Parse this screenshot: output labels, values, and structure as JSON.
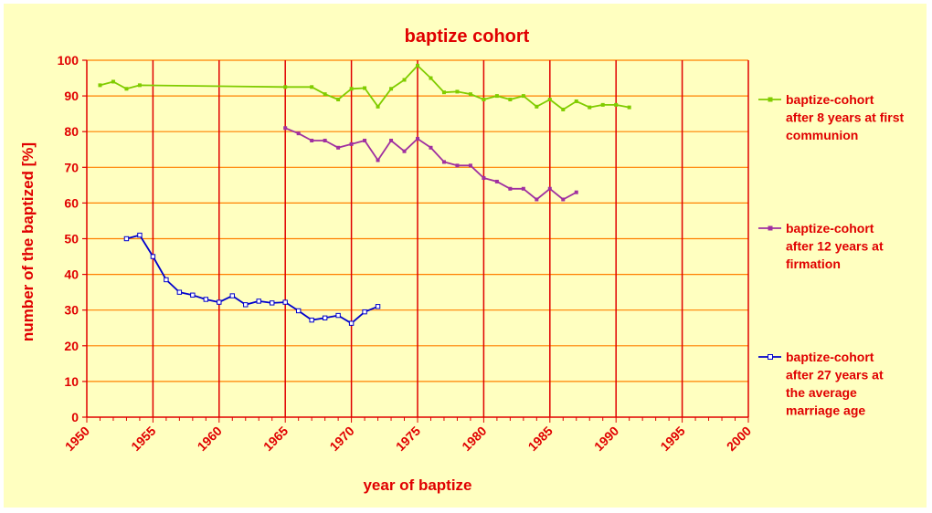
{
  "colors": {
    "background": "#ffffc0",
    "axis": "#e00000",
    "hgrid": "#ff8000",
    "vgrid": "#e00000",
    "text": "#e00000"
  },
  "chart_data": {
    "type": "line",
    "title": "baptize cohort",
    "xlabel": "year of baptize",
    "ylabel": "number of the baptized [%]",
    "xlim": [
      1950,
      2000
    ],
    "ylim": [
      0,
      100
    ],
    "x_ticks": [
      "1950",
      "1955",
      "1960",
      "1965",
      "1970",
      "1975",
      "1980",
      "1985",
      "1990",
      "1995",
      "2000"
    ],
    "y_ticks": [
      "0",
      "10",
      "20",
      "30",
      "40",
      "50",
      "60",
      "70",
      "80",
      "90",
      "100"
    ],
    "grid": true,
    "legend_position": "right",
    "series": [
      {
        "name": "baptize-cohort after 8 years at first communion",
        "legend_lines": [
          "baptize-cohort",
          "after 8 years at first",
          "communion"
        ],
        "color": "#80cc00",
        "marker": "filled",
        "points": [
          [
            1951,
            93
          ],
          [
            1952,
            94
          ],
          [
            1953,
            92
          ],
          [
            1954,
            93
          ],
          [
            1965,
            92.5
          ],
          [
            1967,
            92.5
          ],
          [
            1968,
            90.5
          ],
          [
            1969,
            89
          ],
          [
            1970,
            92
          ],
          [
            1971,
            92.2
          ],
          [
            1972,
            87
          ],
          [
            1973,
            92
          ],
          [
            1974,
            94.5
          ],
          [
            1975,
            98.5
          ],
          [
            1976,
            95
          ],
          [
            1977,
            91
          ],
          [
            1978,
            91.2
          ],
          [
            1979,
            90.5
          ],
          [
            1980,
            89
          ],
          [
            1981,
            90
          ],
          [
            1982,
            89
          ],
          [
            1983,
            90
          ],
          [
            1984,
            87
          ],
          [
            1985,
            89
          ],
          [
            1986,
            86.2
          ],
          [
            1987,
            88.5
          ],
          [
            1988,
            86.8
          ],
          [
            1989,
            87.5
          ],
          [
            1990,
            87.5
          ],
          [
            1991,
            86.8
          ]
        ]
      },
      {
        "name": "baptize-cohort after 12 years at firmation",
        "legend_lines": [
          "baptize-cohort",
          "after 12 years at",
          "firmation"
        ],
        "color": "#a030a0",
        "marker": "filled",
        "points": [
          [
            1965,
            81
          ],
          [
            1966,
            79.5
          ],
          [
            1967,
            77.5
          ],
          [
            1968,
            77.5
          ],
          [
            1969,
            75.5
          ],
          [
            1970,
            76.5
          ],
          [
            1971,
            77.5
          ],
          [
            1972,
            72
          ],
          [
            1973,
            77.5
          ],
          [
            1974,
            74.5
          ],
          [
            1975,
            78
          ],
          [
            1976,
            75.5
          ],
          [
            1977,
            71.5
          ],
          [
            1978,
            70.5
          ],
          [
            1979,
            70.5
          ],
          [
            1980,
            67
          ],
          [
            1981,
            66
          ],
          [
            1982,
            64
          ],
          [
            1983,
            64
          ],
          [
            1984,
            61
          ],
          [
            1985,
            64
          ],
          [
            1986,
            61
          ],
          [
            1987,
            63
          ]
        ]
      },
      {
        "name": "baptize-cohort after 27 years at the average marriage age",
        "legend_lines": [
          "baptize-cohort",
          "after 27 years at",
          "the average",
          "marriage age"
        ],
        "color": "#0000cc",
        "marker": "hollow",
        "points": [
          [
            1953,
            50
          ],
          [
            1954,
            51
          ],
          [
            1955,
            45
          ],
          [
            1956,
            38.5
          ],
          [
            1957,
            35
          ],
          [
            1958,
            34.2
          ],
          [
            1959,
            33
          ],
          [
            1960,
            32.2
          ],
          [
            1961,
            34
          ],
          [
            1962,
            31.5
          ],
          [
            1963,
            32.5
          ],
          [
            1964,
            32
          ],
          [
            1965,
            32.2
          ],
          [
            1966,
            29.8
          ],
          [
            1967,
            27.2
          ],
          [
            1968,
            27.8
          ],
          [
            1969,
            28.5
          ],
          [
            1970,
            26.3
          ],
          [
            1971,
            29.5
          ],
          [
            1972,
            31
          ]
        ]
      }
    ]
  }
}
